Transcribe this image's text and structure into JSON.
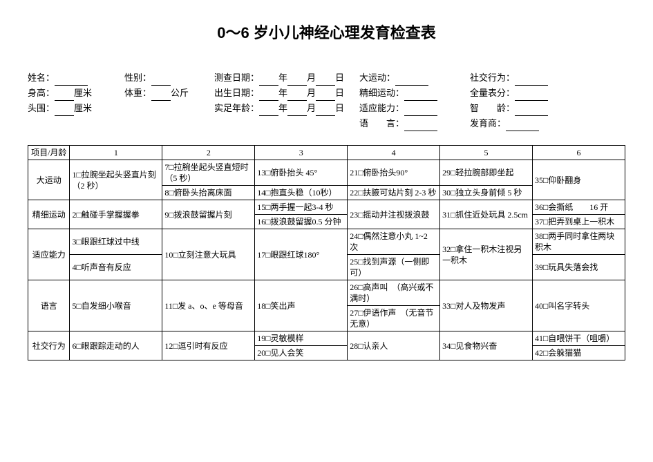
{
  "title": "0～6 岁小儿神经心理发育检查表",
  "header": {
    "row1": {
      "name_label": "姓名：",
      "sex_label": "性别：",
      "test_date_label": "测查日期：",
      "year": "年",
      "month": "月",
      "day": "日",
      "gross_motor_label": "大运动：",
      "social_label": "社交行为："
    },
    "row2": {
      "height_label": "身高：",
      "height_unit": "厘米",
      "weight_label": "体重：",
      "weight_unit": "公斤",
      "birth_date_label": "出生日期：",
      "fine_motor_label": "精细运动：",
      "total_score_label": "全量表分："
    },
    "row3": {
      "head_label": "头围：",
      "head_unit": "厘米",
      "age_label": "实足年龄：",
      "adapt_label": "适应能力：",
      "iq_label": "智　　龄："
    },
    "row4": {
      "lang_label": "语　　言：",
      "dq_label": "发育商："
    }
  },
  "table": {
    "header": {
      "c0": "项目/月龄",
      "c1": "1",
      "c2": "2",
      "c3": "3",
      "c4": "4",
      "c5": "5",
      "c6": "6"
    },
    "rows": {
      "gross_motor": {
        "label": "大运动",
        "m1": "1□拉腕坐起头竖直片刻（2 秒）",
        "m2a": "7□拉腕坐起头竖直短时（5 秒）",
        "m2b": "8□俯卧头抬离床面",
        "m3a": "13□俯卧抬头 45°",
        "m3b": "14□抱直头稳（10秒）",
        "m4a": "21□俯卧抬头90°",
        "m4b": "22□扶腋可站片刻 2-3 秒",
        "m5a": "29□轻拉腕部即坐起",
        "m5b": "30□独立头身前倾 5 秒",
        "m6": "35□仰卧翻身"
      },
      "fine_motor": {
        "label": "精细运动",
        "m1": "2□触碰手掌握握拳",
        "m2": "9□拨浪鼓留握片刻",
        "m3a": "15□两手握一起3-4 秒",
        "m3b": "16□拨浪鼓留握0.5 分钟",
        "m4": "23□摇动并注视拨浪鼓",
        "m5": "31□抓住近处玩具 2.5cm",
        "m6a": "36□会撕纸　　16 开",
        "m6b": "37□把弄到桌上一积木"
      },
      "adapt": {
        "label": "适应能力",
        "m1a": "3□眼跟红球过中线",
        "m1b": "4□听声音有反应",
        "m2": "10□立刻注意大玩具",
        "m3": "17□眼跟红球180°",
        "m4a": "24□偶然注意小丸 1~2 次",
        "m4b": "25□找到声源（一侧即可）",
        "m5": "32□拿住一积木注视另一积木",
        "m6a": "38□两手同时拿住两块积木",
        "m6b": "39□玩具失落会找"
      },
      "language": {
        "label": "语言",
        "m1": "5□自发细小喉音",
        "m2": "11□发 a、o、e 等母音",
        "m3": "18□笑出声",
        "m4a": "26□高声叫　（高兴或不满时）",
        "m4b": "27□伊语作声　（无音节无意）",
        "m5": "33□对人及物发声",
        "m6": "40□叫名字转头"
      },
      "social": {
        "label": "社交行为",
        "m1": "6□眼跟踪走动的人",
        "m2": "12□逗引时有反应",
        "m3a": "19□灵敏模样",
        "m3b": "20□见人会笑",
        "m4": "28□认亲人",
        "m5": "34□见食物兴奋",
        "m6a": "41□自喂饼干（咀嚼）",
        "m6b": "42□会躲猫猫"
      }
    }
  }
}
